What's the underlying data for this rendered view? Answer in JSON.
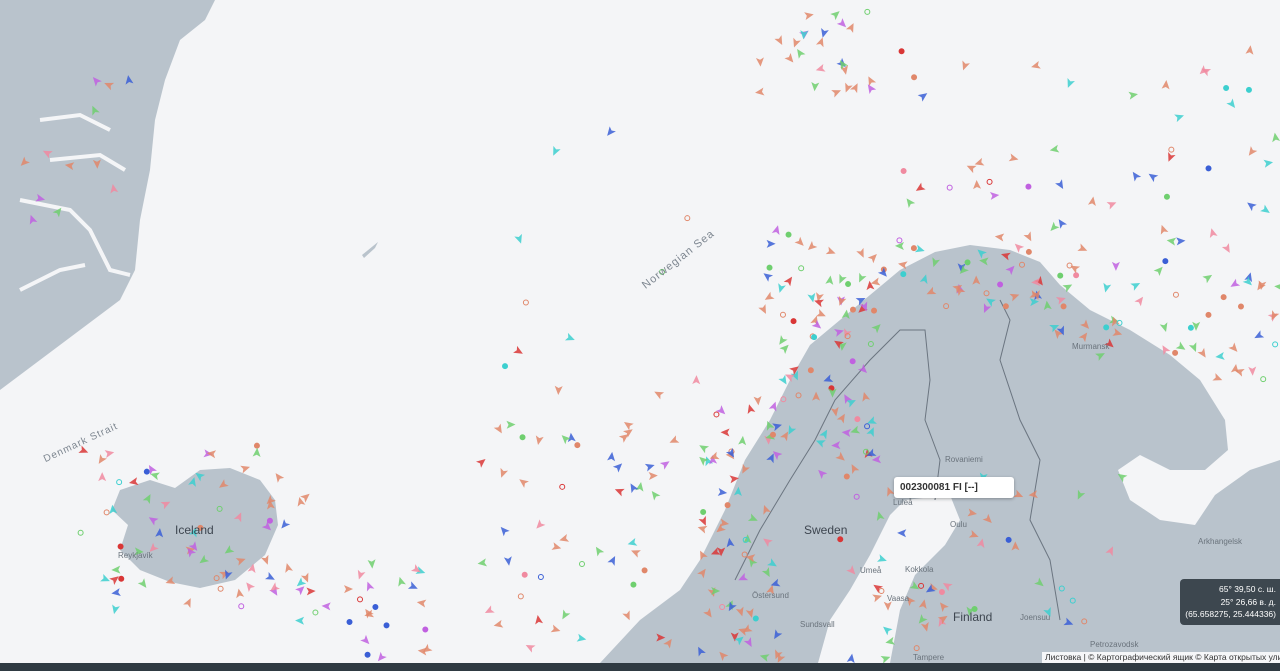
{
  "map": {
    "labels": {
      "norwegian_sea": "Norwegian Sea",
      "denmark_strait": "Denmark Strait",
      "iceland": "Iceland",
      "reykjavik": "Reykjavík",
      "sweden": "Sweden",
      "finland": "Finland",
      "rovaniemi": "Rovaniemi",
      "lulea": "Luleå",
      "oulu": "Oulu",
      "umea": "Umeå",
      "kokkola": "Kokkola",
      "vaasa": "Vaasa",
      "ostersund": "Östersund",
      "sundsvall": "Sundsvall",
      "joensuu": "Joensuu",
      "tampere": "Tampere",
      "murmansk": "Murmansk",
      "arkhangelsk": "Arkhangelsk",
      "petrozavodsk": "Petrozavodsk"
    },
    "colors": {
      "water": "#f4f5f7",
      "land": "#b9c3cc",
      "cargo": "#e0876a",
      "tanker": "#d93636",
      "passenger": "#3a5fd6",
      "fishing": "#6fcf6f",
      "tug": "#3ccfcf",
      "pleasure": "#c060e0",
      "other": "#f08aa0"
    }
  },
  "tooltip": {
    "text": "002300081 FI [--]"
  },
  "coordinates": {
    "lat_dms": "65° 39,50 с. ш.",
    "lon_dms": "25° 26,66 в. д.",
    "decimal": "(65.658275, 25.444336)"
  },
  "attribution": "Листовка | © Картографический ящик © Карта открытых улиц"
}
